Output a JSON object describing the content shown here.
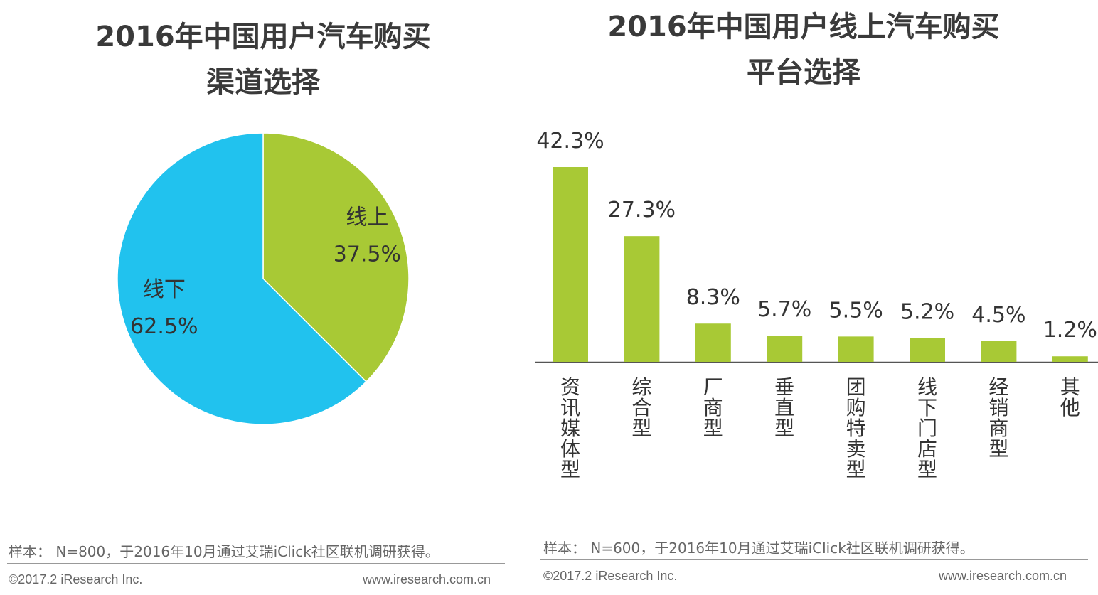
{
  "chart_data": [
    {
      "type": "pie",
      "title": "2016年中国用户汽车购买渠道选择",
      "title_lines": [
        "2016年中国用户汽车购买",
        "渠道选择"
      ],
      "slices": [
        {
          "label": "线上",
          "value": 37.5,
          "value_label": "37.5%",
          "color": "#a8c935"
        },
        {
          "label": "线下",
          "value": 62.5,
          "value_label": "62.5%",
          "color": "#21c2ee"
        }
      ]
    },
    {
      "type": "bar",
      "title": "2016年中国用户线上汽车购买平台选择",
      "title_lines": [
        "2016年中国用户线上汽车购买",
        "平台选择"
      ],
      "categories": [
        "资讯媒体型",
        "综合型",
        "厂商型",
        "垂直型",
        "团购特卖型",
        "线下门店型",
        "经销商型",
        "其他"
      ],
      "values": [
        42.3,
        27.3,
        8.3,
        5.7,
        5.5,
        5.2,
        4.5,
        1.2
      ],
      "value_labels": [
        "42.3%",
        "27.3%",
        "8.3%",
        "5.7%",
        "5.5%",
        "5.2%",
        "4.5%",
        "1.2%"
      ],
      "bar_color": "#a8c935",
      "xlabel": "",
      "ylabel": "",
      "ylim": [
        0,
        42.3
      ],
      "grid": false
    }
  ],
  "footer": {
    "left_note": "样本： N=800，于2016年10月通过艾瑞iClick社区联机调研获得。",
    "right_note": "样本： N=600，于2016年10月通过艾瑞iClick社区联机调研获得。",
    "copyright": "©2017.2 iResearch Inc.",
    "website": "www.iresearch.com.cn"
  }
}
